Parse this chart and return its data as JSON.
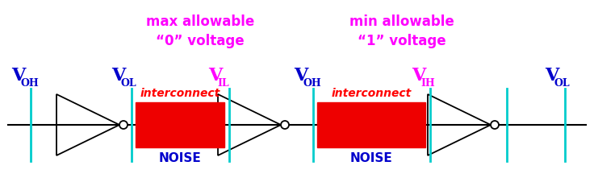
{
  "bg_color": "#ffffff",
  "line_color": "#000000",
  "cyan_color": "#00cccc",
  "blue_color": "#0000cc",
  "magenta_color": "#ff00ff",
  "red_color": "#ff0000",
  "red_fill": "#ee0000",
  "top_left_line1": "max allowable",
  "top_left_line2": "“0” voltage",
  "top_right_line1": "min allowable",
  "top_right_line2": "“1” voltage",
  "noise": "NOISE",
  "interconnect": "interconnect",
  "figw": 7.36,
  "figh": 2.21,
  "dpi": 100
}
